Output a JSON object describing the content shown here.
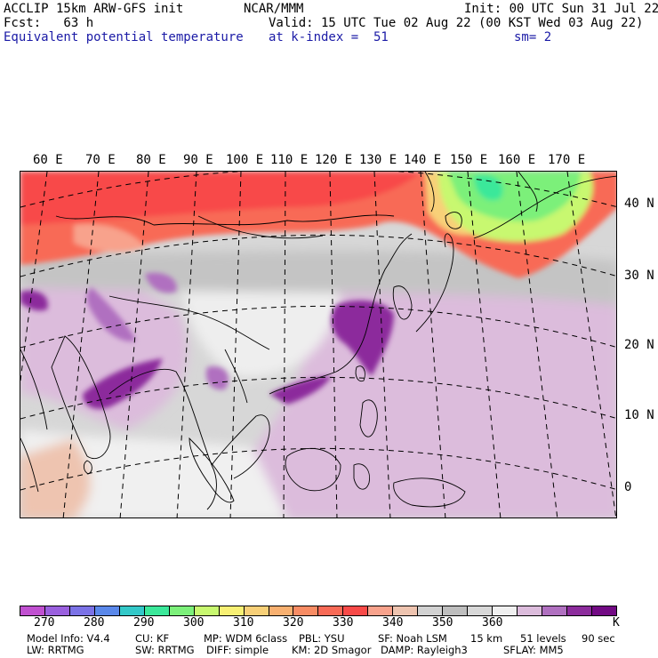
{
  "header": {
    "line1_left": "ACCLIP 15km ARW-GFS init",
    "line1_center": "NCAR/MMM",
    "line1_right": "Init: 00 UTC Sun 31 Jul 22",
    "line2_left": "Fcst:   63 h",
    "line2_right": "Valid: 15 UTC Tue 02 Aug 22 (00 KST Wed 03 Aug 22)",
    "line3_left": "Equivalent potential temperature",
    "line3_center": "at k-index =  51",
    "line3_right": "sm= 2"
  },
  "map": {
    "longitude_labels": [
      "60 E",
      "70 E",
      "80 E",
      "90 E",
      "100 E",
      "110 E",
      "120 E",
      "130 E",
      "140 E",
      "150 E",
      "160 E",
      "170 E"
    ],
    "latitude_labels": [
      "40 N",
      "30 N",
      "20 N",
      "10 N",
      "0"
    ]
  },
  "colorbar": {
    "colors": [
      "#c050d0",
      "#9a60de",
      "#7b72e6",
      "#5a88ea",
      "#33c8c8",
      "#3be89a",
      "#7cf07a",
      "#c8f870",
      "#f8f074",
      "#f8d078",
      "#f8b070",
      "#f88c64",
      "#f86a56",
      "#f84a48",
      "#f8a28c",
      "#eec4b0",
      "#d2d2d2",
      "#bebebe",
      "#d8d8d8",
      "#f0f0f0",
      "#dcbcdc",
      "#b070c0",
      "#8c2c9c",
      "#720a84"
    ],
    "tick_labels": [
      "270",
      "280",
      "290",
      "300",
      "310",
      "320",
      "330",
      "340",
      "350",
      "360"
    ],
    "unit": "K"
  },
  "footer": {
    "row1": [
      "Model Info: V4.4",
      "CU: KF",
      "MP: WDM 6class",
      "PBL: YSU",
      "SF: Noah LSM",
      "15 km",
      "51 levels",
      "90 sec"
    ],
    "row2": [
      "LW: RRTMG",
      "SW: RRTMG",
      "DIFF: simple",
      "KM: 2D Smagor",
      "DAMP: Rayleigh3",
      "SFLAY: MM5"
    ]
  }
}
